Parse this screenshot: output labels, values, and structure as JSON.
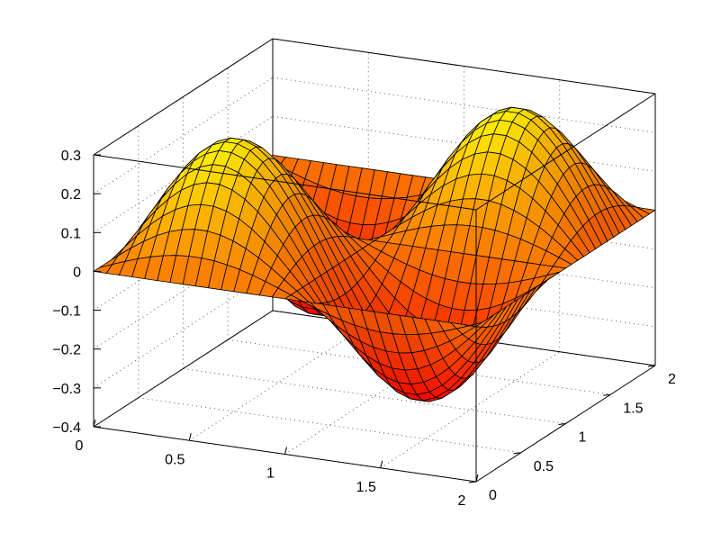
{
  "chart_data": {
    "type": "surface",
    "title": "",
    "xlabel": "",
    "ylabel": "",
    "zlabel": "",
    "grid": true,
    "colormap": "autumn",
    "xlim": [
      0,
      2
    ],
    "ylim": [
      0,
      2
    ],
    "zlim": [
      -0.4,
      0.3
    ],
    "x_ticks": [
      "0",
      "0.5",
      "1",
      "1.5",
      "2"
    ],
    "y_ticks": [
      "0",
      "0.5",
      "1",
      "1.5",
      "2"
    ],
    "z_ticks": [
      "−0.4",
      "−0.3",
      "−0.2",
      "−0.1",
      "0",
      "0.1",
      "0.2",
      "0.3"
    ],
    "surface": {
      "description": "z = 0.3 * sin(pi*x) * sin(pi*y)",
      "function": "0.3*sin(pi*x)*sin(pi*y)",
      "x_values": [
        0,
        0.25,
        0.5,
        0.75,
        1,
        1.25,
        1.5,
        1.75,
        2
      ],
      "y_values": [
        0,
        0.25,
        0.5,
        0.75,
        1,
        1.25,
        1.5,
        1.75,
        2
      ],
      "grid_resolution": 30,
      "z_max": 0.3,
      "z_min": -0.3,
      "peaks": [
        {
          "x": 0.5,
          "y": 0.5,
          "z": 0.3
        },
        {
          "x": 1.5,
          "y": 1.5,
          "z": 0.3
        }
      ],
      "troughs": [
        {
          "x": 0.5,
          "y": 1.5,
          "z": -0.3
        },
        {
          "x": 1.5,
          "y": 0.5,
          "z": -0.3
        }
      ]
    }
  }
}
